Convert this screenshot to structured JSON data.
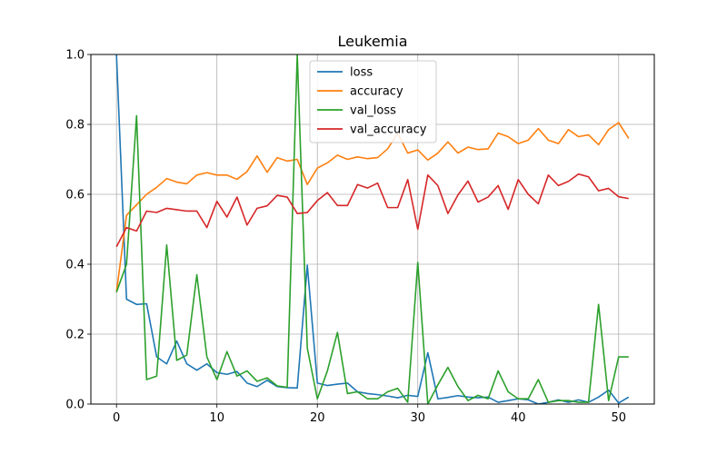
{
  "chart_data": {
    "type": "line",
    "title": "Leukemia",
    "xlabel": "",
    "ylabel": "",
    "xlim": [
      -2.55,
      53.55
    ],
    "ylim": [
      0,
      1.0
    ],
    "xticks": [
      "0",
      "10",
      "20",
      "30",
      "40",
      "50"
    ],
    "yticks": [
      "0.0",
      "0.2",
      "0.4",
      "0.6",
      "0.8",
      "1.0"
    ],
    "grid": true,
    "legend_position": "top-center",
    "series": [
      {
        "name": "loss",
        "color": "#1f77b4",
        "values": [
          1.0,
          0.3,
          0.285,
          0.287,
          0.135,
          0.115,
          0.18,
          0.115,
          0.097,
          0.115,
          0.09,
          0.085,
          0.093,
          0.06,
          0.05,
          0.068,
          0.05,
          0.047,
          0.046,
          0.397,
          0.06,
          0.053,
          0.057,
          0.06,
          0.035,
          0.03,
          0.027,
          0.023,
          0.018,
          0.025,
          0.022,
          0.147,
          0.015,
          0.019,
          0.024,
          0.02,
          0.018,
          0.02,
          0.005,
          0.01,
          0.015,
          0.012,
          0.0,
          0.005,
          0.012,
          0.005,
          0.012,
          0.005,
          0.02,
          0.04,
          0.003,
          0.02
        ]
      },
      {
        "name": "accuracy",
        "color": "#ff7f0e",
        "values": [
          0.32,
          0.54,
          0.57,
          0.6,
          0.62,
          0.645,
          0.635,
          0.63,
          0.655,
          0.662,
          0.655,
          0.655,
          0.643,
          0.665,
          0.71,
          0.663,
          0.705,
          0.695,
          0.7,
          0.628,
          0.675,
          0.69,
          0.712,
          0.7,
          0.707,
          0.702,
          0.705,
          0.73,
          0.775,
          0.718,
          0.727,
          0.698,
          0.718,
          0.75,
          0.718,
          0.735,
          0.728,
          0.73,
          0.775,
          0.765,
          0.745,
          0.755,
          0.788,
          0.755,
          0.745,
          0.785,
          0.765,
          0.77,
          0.742,
          0.785,
          0.805,
          0.76
        ]
      },
      {
        "name": "val_loss",
        "color": "#2ca02c",
        "values": [
          0.32,
          0.4,
          0.825,
          0.07,
          0.08,
          0.455,
          0.125,
          0.14,
          0.37,
          0.135,
          0.07,
          0.15,
          0.08,
          0.095,
          0.065,
          0.075,
          0.052,
          0.048,
          1.0,
          0.16,
          0.015,
          0.095,
          0.205,
          0.03,
          0.035,
          0.015,
          0.015,
          0.035,
          0.045,
          0.005,
          0.405,
          0.0,
          0.055,
          0.105,
          0.05,
          0.01,
          0.025,
          0.015,
          0.095,
          0.035,
          0.015,
          0.015,
          0.07,
          0.005,
          0.01,
          0.01,
          0.005,
          0.005,
          0.285,
          0.01,
          0.135,
          0.135
        ]
      },
      {
        "name": "val_accuracy",
        "color": "#d62728",
        "values": [
          0.45,
          0.505,
          0.495,
          0.552,
          0.548,
          0.56,
          0.556,
          0.552,
          0.552,
          0.505,
          0.58,
          0.535,
          0.592,
          0.512,
          0.56,
          0.567,
          0.597,
          0.592,
          0.545,
          0.548,
          0.582,
          0.605,
          0.568,
          0.568,
          0.628,
          0.618,
          0.632,
          0.562,
          0.562,
          0.642,
          0.5,
          0.655,
          0.625,
          0.545,
          0.598,
          0.638,
          0.578,
          0.592,
          0.625,
          0.557,
          0.642,
          0.6,
          0.573,
          0.655,
          0.625,
          0.637,
          0.658,
          0.65,
          0.61,
          0.617,
          0.593,
          0.588
        ]
      }
    ]
  }
}
